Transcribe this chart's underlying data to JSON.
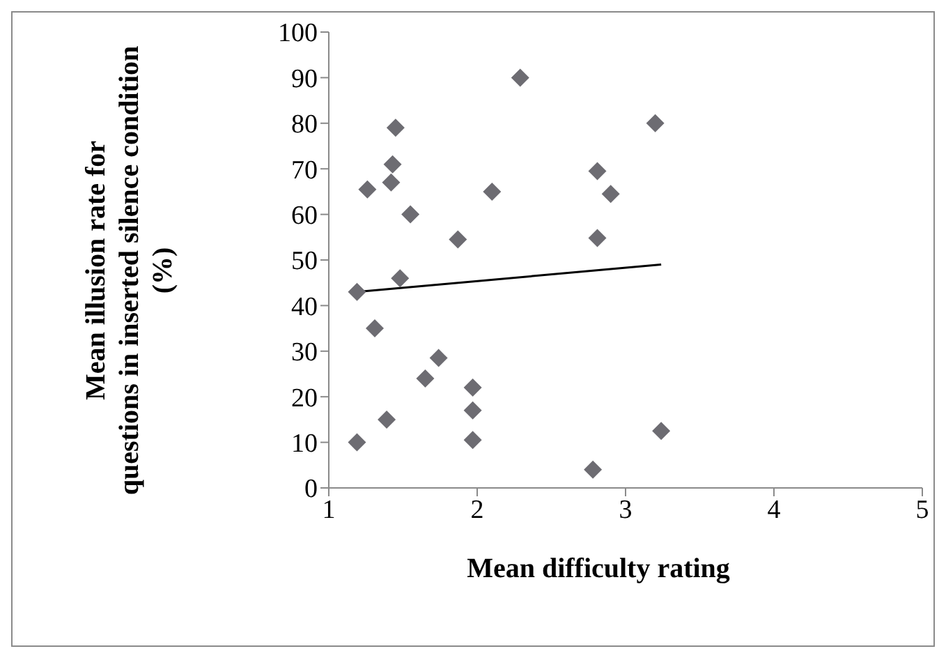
{
  "chart_data": {
    "type": "scatter",
    "xlabel": "Mean difficulty rating",
    "ylabel": "Mean illusion rate for questions in inserted silence condition (%)",
    "xlim": [
      1,
      5
    ],
    "xticks": [
      1,
      2,
      3,
      4,
      5
    ],
    "ylim": [
      0,
      100
    ],
    "yticks": [
      0,
      10,
      20,
      30,
      40,
      50,
      60,
      70,
      80,
      90,
      100
    ],
    "grid": false,
    "legend": false,
    "series": [
      {
        "color": "#6d6c72",
        "marker": "diamond",
        "x": [
          1.19,
          1.26,
          1.31,
          1.39,
          1.42,
          1.43,
          1.45,
          1.48,
          1.55,
          1.19,
          1.65,
          1.74,
          1.87,
          1.97,
          1.97,
          1.97,
          2.1,
          2.29,
          2.78,
          2.81,
          2.81,
          2.9,
          3.2,
          3.24
        ],
        "values": [
          43,
          65.5,
          35,
          15,
          67,
          71,
          79,
          46,
          60,
          10,
          24,
          28.5,
          54.5,
          22,
          17,
          10.5,
          65,
          90,
          4,
          69.5,
          54.8,
          64.5,
          80,
          12.5
        ]
      },
      {
        "type": "line",
        "color": "#000000",
        "x": [
          1.19,
          3.24
        ],
        "values": [
          43,
          49
        ]
      }
    ]
  }
}
